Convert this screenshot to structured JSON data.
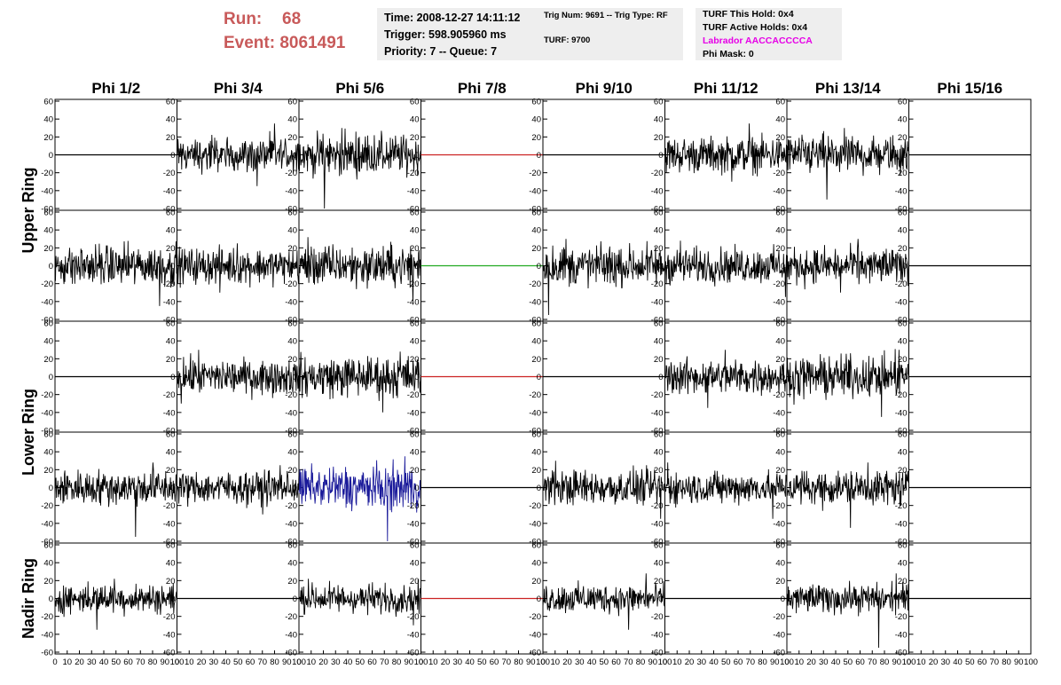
{
  "header": {
    "run_label": "Run:",
    "run_value": "68",
    "event_label": "Event:",
    "event_value": "8061491",
    "time": "Time: 2008-12-27 14:11:12",
    "trigger": "Trigger: 598.905960 ms",
    "priority": "Priority: 7 -- Queue: 7",
    "trig_num": "Trig Num: 9691 -- Trig Type: RF",
    "turf": "TURF: 9700",
    "turf_this_hold": "TURF This Hold: 0x4",
    "turf_active_holds": "TURF Active Holds: 0x4",
    "labrador": "Labrador AACCACCCCA",
    "phi_mask": "Phi Mask: 0"
  },
  "colors": {
    "title_red": "#c85a5a",
    "labrador_magenta": "#e600e6",
    "trace_black": "#000000",
    "trace_red": "#cc2222",
    "trace_green": "#22aa22",
    "trace_blue": "#1a1a9a",
    "info_box_bg": "#eeeeee"
  },
  "chart_data": {
    "type": "line",
    "columns": [
      "Phi 1/2",
      "Phi 3/4",
      "Phi 5/6",
      "Phi 7/8",
      "Phi 9/10",
      "Phi 11/12",
      "Phi 13/14",
      "Phi 15/16"
    ],
    "ring_labels": [
      {
        "text": "Upper Ring",
        "rows": [
          0,
          1
        ]
      },
      {
        "text": "Lower Ring",
        "rows": [
          2,
          3
        ]
      },
      {
        "text": "Nadir Ring",
        "rows": [
          4
        ]
      }
    ],
    "ylim": [
      -60,
      60
    ],
    "xlim": [
      0,
      100
    ],
    "y_ticks": [
      -60,
      -40,
      -20,
      0,
      20,
      40,
      60
    ],
    "x_ticks": [
      0,
      10,
      20,
      30,
      40,
      50,
      60,
      70,
      80,
      90,
      100
    ],
    "x_tick_labels": [
      "0",
      "10",
      "20",
      "30",
      "40",
      "50",
      "60",
      "70",
      "80",
      "90",
      "100"
    ],
    "samples_per_trace": 260,
    "grid": false,
    "panels": [
      [
        {
          "kind": "flat",
          "color": "black",
          "amplitude": 0
        },
        {
          "kind": "noise",
          "color": "black",
          "amplitude": 12,
          "max": 35,
          "min": -35
        },
        {
          "kind": "noise",
          "color": "black",
          "amplitude": 14,
          "max": 30,
          "min": -60
        },
        {
          "kind": "flat",
          "color": "red",
          "amplitude": 0
        },
        {
          "kind": "flat",
          "color": "black",
          "amplitude": 0
        },
        {
          "kind": "noise",
          "color": "black",
          "amplitude": 12,
          "max": 35,
          "min": -30
        },
        {
          "kind": "noise",
          "color": "black",
          "amplitude": 13,
          "max": 30,
          "min": -50
        },
        {
          "kind": "flat",
          "color": "black",
          "amplitude": 0
        }
      ],
      [
        {
          "kind": "noise",
          "color": "black",
          "amplitude": 14,
          "max": 28,
          "min": -45
        },
        {
          "kind": "noise",
          "color": "black",
          "amplitude": 12,
          "max": 25,
          "min": -30
        },
        {
          "kind": "noise",
          "color": "black",
          "amplitude": 14,
          "max": 32,
          "min": -40
        },
        {
          "kind": "flat",
          "color": "green",
          "amplitude": 0
        },
        {
          "kind": "noise",
          "color": "black",
          "amplitude": 14,
          "max": 30,
          "min": -55
        },
        {
          "kind": "noise",
          "color": "black",
          "amplitude": 12,
          "max": 28,
          "min": -35
        },
        {
          "kind": "noise",
          "color": "black",
          "amplitude": 12,
          "max": 30,
          "min": -30
        },
        {
          "kind": "flat",
          "color": "black",
          "amplitude": 0
        }
      ],
      [
        {
          "kind": "flat",
          "color": "black",
          "amplitude": 0
        },
        {
          "kind": "noise",
          "color": "black",
          "amplitude": 12,
          "max": 30,
          "min": -30
        },
        {
          "kind": "noise",
          "color": "black",
          "amplitude": 14,
          "max": 28,
          "min": -40
        },
        {
          "kind": "flat",
          "color": "red",
          "amplitude": 0
        },
        {
          "kind": "flat",
          "color": "black",
          "amplitude": 0
        },
        {
          "kind": "noise",
          "color": "black",
          "amplitude": 12,
          "max": 30,
          "min": -35
        },
        {
          "kind": "noise",
          "color": "black",
          "amplitude": 14,
          "max": 30,
          "min": -45
        },
        {
          "kind": "flat",
          "color": "black",
          "amplitude": 0
        }
      ],
      [
        {
          "kind": "noise",
          "color": "black",
          "amplitude": 12,
          "max": 28,
          "min": -55
        },
        {
          "kind": "noise",
          "color": "black",
          "amplitude": 11,
          "max": 25,
          "min": -30
        },
        {
          "kind": "noise",
          "color": "blue",
          "amplitude": 15,
          "max": 35,
          "min": -60
        },
        {
          "kind": "flat",
          "color": "black",
          "amplitude": 0
        },
        {
          "kind": "noise",
          "color": "black",
          "amplitude": 12,
          "max": 30,
          "min": -35
        },
        {
          "kind": "noise",
          "color": "black",
          "amplitude": 11,
          "max": 28,
          "min": -35
        },
        {
          "kind": "noise",
          "color": "black",
          "amplitude": 12,
          "max": 28,
          "min": -45
        },
        {
          "kind": "flat",
          "color": "black",
          "amplitude": 0
        }
      ],
      [
        {
          "kind": "noise",
          "color": "black",
          "amplitude": 10,
          "max": 22,
          "min": -35
        },
        {
          "kind": "flat",
          "color": "black",
          "amplitude": 0
        },
        {
          "kind": "noise",
          "color": "black",
          "amplitude": 10,
          "max": 22,
          "min": -30
        },
        {
          "kind": "flat",
          "color": "red",
          "amplitude": 0
        },
        {
          "kind": "noise",
          "color": "black",
          "amplitude": 10,
          "max": 28,
          "min": -35
        },
        {
          "kind": "flat",
          "color": "black",
          "amplitude": 0
        },
        {
          "kind": "noise",
          "color": "black",
          "amplitude": 10,
          "max": 28,
          "min": -55
        },
        {
          "kind": "flat",
          "color": "black",
          "amplitude": 0
        }
      ]
    ]
  }
}
